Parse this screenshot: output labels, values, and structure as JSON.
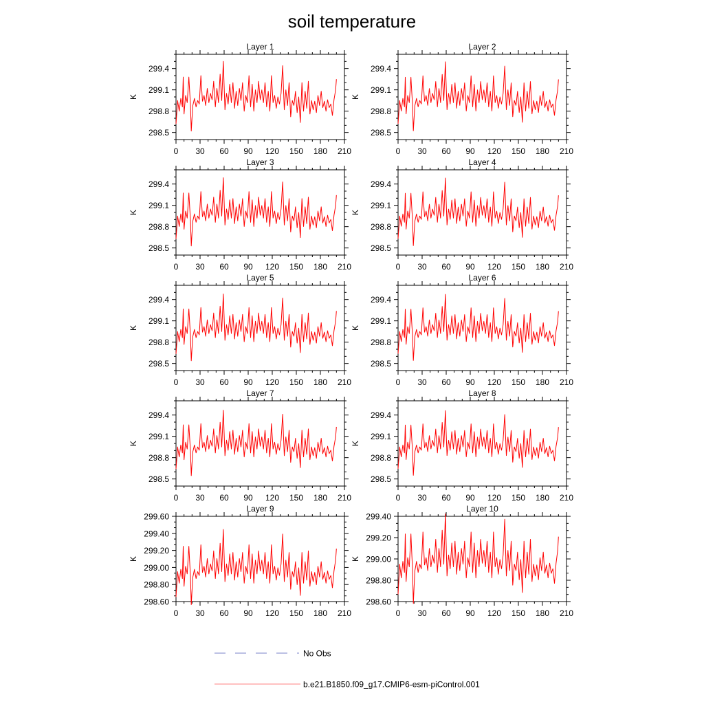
{
  "title": "soil temperature",
  "legend": {
    "entries": [
      {
        "label": "No Obs",
        "style": "dashed",
        "color": "#7a82c8"
      },
      {
        "label": "b.e21.B1850.f09_g17.CMIP6-esm-piControl.001",
        "style": "solid",
        "color": "#ff8080"
      }
    ]
  },
  "chart_data": [
    {
      "type": "line",
      "title": "Layer 1",
      "xlabel": "",
      "ylabel": "K",
      "xlim": [
        0,
        210
      ],
      "ylim": [
        298.4,
        299.6
      ],
      "xticks": [
        0,
        30,
        60,
        90,
        120,
        150,
        180,
        210
      ],
      "yticks": [
        298.5,
        298.8,
        299.1,
        299.4
      ],
      "ytick_labels": [
        "298.5",
        "298.8",
        "299.1",
        "299.4"
      ],
      "series": [
        {
          "name": "b.e21.B1850.f09_g17.CMIP6-esm-piControl.001",
          "color": "#ff0000",
          "x_start": 0,
          "x_step": 1,
          "values": []
        }
      ]
    },
    {
      "type": "line",
      "title": "Layer 2",
      "xlabel": "",
      "ylabel": "K",
      "xlim": [
        0,
        210
      ],
      "ylim": [
        298.4,
        299.6
      ],
      "xticks": [
        0,
        30,
        60,
        90,
        120,
        150,
        180,
        210
      ],
      "yticks": [
        298.5,
        298.8,
        299.1,
        299.4
      ],
      "ytick_labels": [
        "298.5",
        "298.8",
        "299.1",
        "299.4"
      ],
      "series": [
        {
          "name": "b.e21.B1850.f09_g17.CMIP6-esm-piControl.001",
          "color": "#ff0000",
          "x_start": 0,
          "x_step": 1,
          "values": []
        }
      ]
    },
    {
      "type": "line",
      "title": "Layer 3",
      "xlabel": "",
      "ylabel": "K",
      "xlim": [
        0,
        210
      ],
      "ylim": [
        298.4,
        299.6
      ],
      "xticks": [
        0,
        30,
        60,
        90,
        120,
        150,
        180,
        210
      ],
      "yticks": [
        298.5,
        298.8,
        299.1,
        299.4
      ],
      "ytick_labels": [
        "298.5",
        "298.8",
        "299.1",
        "299.4"
      ],
      "series": [
        {
          "name": "b.e21.B1850.f09_g17.CMIP6-esm-piControl.001",
          "color": "#ff0000",
          "x_start": 0,
          "x_step": 1,
          "values": []
        }
      ]
    },
    {
      "type": "line",
      "title": "Layer 4",
      "xlabel": "",
      "ylabel": "K",
      "xlim": [
        0,
        210
      ],
      "ylim": [
        298.4,
        299.6
      ],
      "xticks": [
        0,
        30,
        60,
        90,
        120,
        150,
        180,
        210
      ],
      "yticks": [
        298.5,
        298.8,
        299.1,
        299.4
      ],
      "ytick_labels": [
        "298.5",
        "298.8",
        "299.1",
        "299.4"
      ],
      "series": [
        {
          "name": "b.e21.B1850.f09_g17.CMIP6-esm-piControl.001",
          "color": "#ff0000",
          "x_start": 0,
          "x_step": 1,
          "values": []
        }
      ]
    },
    {
      "type": "line",
      "title": "Layer 5",
      "xlabel": "",
      "ylabel": "K",
      "xlim": [
        0,
        210
      ],
      "ylim": [
        298.4,
        299.6
      ],
      "xticks": [
        0,
        30,
        60,
        90,
        120,
        150,
        180,
        210
      ],
      "yticks": [
        298.5,
        298.8,
        299.1,
        299.4
      ],
      "ytick_labels": [
        "298.5",
        "298.8",
        "299.1",
        "299.4"
      ],
      "series": [
        {
          "name": "b.e21.B1850.f09_g17.CMIP6-esm-piControl.001",
          "color": "#ff0000",
          "x_start": 0,
          "x_step": 1,
          "values": []
        }
      ]
    },
    {
      "type": "line",
      "title": "Layer 6",
      "xlabel": "",
      "ylabel": "K",
      "xlim": [
        0,
        210
      ],
      "ylim": [
        298.4,
        299.6
      ],
      "xticks": [
        0,
        30,
        60,
        90,
        120,
        150,
        180,
        210
      ],
      "yticks": [
        298.5,
        298.8,
        299.1,
        299.4
      ],
      "ytick_labels": [
        "298.5",
        "298.8",
        "299.1",
        "299.4"
      ],
      "series": [
        {
          "name": "b.e21.B1850.f09_g17.CMIP6-esm-piControl.001",
          "color": "#ff0000",
          "x_start": 0,
          "x_step": 1,
          "values": []
        }
      ]
    },
    {
      "type": "line",
      "title": "Layer 7",
      "xlabel": "",
      "ylabel": "K",
      "xlim": [
        0,
        210
      ],
      "ylim": [
        298.4,
        299.6
      ],
      "xticks": [
        0,
        30,
        60,
        90,
        120,
        150,
        180,
        210
      ],
      "yticks": [
        298.5,
        298.8,
        299.1,
        299.4
      ],
      "ytick_labels": [
        "298.5",
        "298.8",
        "299.1",
        "299.4"
      ],
      "series": [
        {
          "name": "b.e21.B1850.f09_g17.CMIP6-esm-piControl.001",
          "color": "#ff0000",
          "x_start": 0,
          "x_step": 1,
          "values": []
        }
      ]
    },
    {
      "type": "line",
      "title": "Layer 8",
      "xlabel": "",
      "ylabel": "K",
      "xlim": [
        0,
        210
      ],
      "ylim": [
        298.4,
        299.6
      ],
      "xticks": [
        0,
        30,
        60,
        90,
        120,
        150,
        180,
        210
      ],
      "yticks": [
        298.5,
        298.8,
        299.1,
        299.4
      ],
      "ytick_labels": [
        "298.5",
        "298.8",
        "299.1",
        "299.4"
      ],
      "series": [
        {
          "name": "b.e21.B1850.f09_g17.CMIP6-esm-piControl.001",
          "color": "#ff0000",
          "x_start": 0,
          "x_step": 1,
          "values": []
        }
      ]
    },
    {
      "type": "line",
      "title": "Layer 9",
      "xlabel": "",
      "ylabel": "K",
      "xlim": [
        0,
        210
      ],
      "ylim": [
        298.6,
        299.6
      ],
      "xticks": [
        0,
        30,
        60,
        90,
        120,
        150,
        180,
        210
      ],
      "yticks": [
        298.6,
        298.8,
        299.0,
        299.2,
        299.4,
        299.6
      ],
      "ytick_labels": [
        "298.60",
        "298.80",
        "299.00",
        "299.20",
        "299.40",
        "299.60"
      ],
      "series": [
        {
          "name": "b.e21.B1850.f09_g17.CMIP6-esm-piControl.001",
          "color": "#ff0000",
          "x_start": 0,
          "x_step": 1,
          "values": []
        }
      ]
    },
    {
      "type": "line",
      "title": "Layer 10",
      "xlabel": "",
      "ylabel": "K",
      "xlim": [
        0,
        210
      ],
      "ylim": [
        298.6,
        299.4
      ],
      "xticks": [
        0,
        30,
        60,
        90,
        120,
        150,
        180,
        210
      ],
      "yticks": [
        298.6,
        298.8,
        299.0,
        299.2,
        299.4
      ],
      "ytick_labels": [
        "298.60",
        "298.80",
        "299.00",
        "299.20",
        "299.40"
      ],
      "series": [
        {
          "name": "b.e21.B1850.f09_g17.CMIP6-esm-piControl.001",
          "color": "#ff0000",
          "x_start": 0,
          "x_step": 1,
          "values": []
        }
      ]
    }
  ]
}
